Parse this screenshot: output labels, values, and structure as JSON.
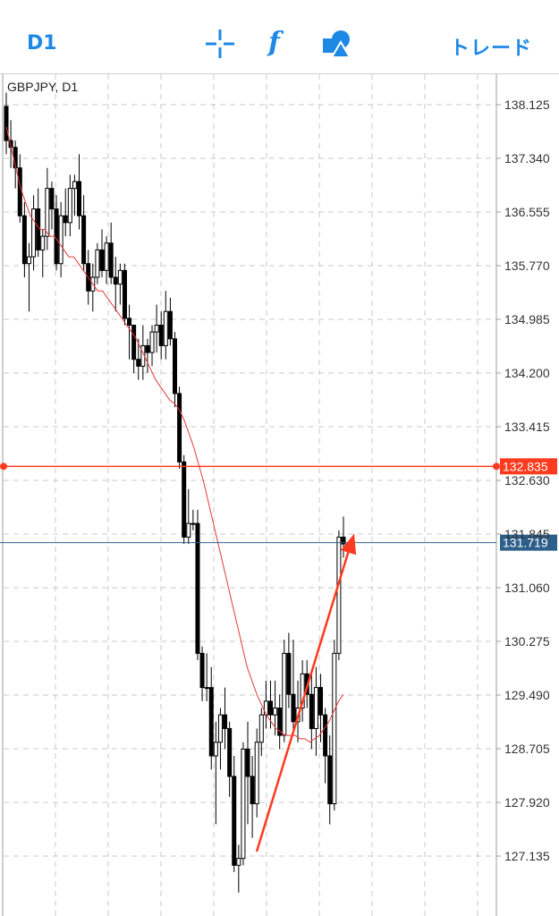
{
  "toolbar": {
    "timeframe": "D1",
    "crosshair_icon": "crosshair-icon",
    "indicators_icon": "function-icon",
    "indicators_glyph": "f",
    "objects_icon": "shapes-icon",
    "trade_label": "トレード"
  },
  "colors": {
    "accent": "#1e88e5",
    "candle": "#000000",
    "ma": "#e53935",
    "hline": "#ff3b1f",
    "bid": "#2e5f8a",
    "grid": "#c8c8c8"
  },
  "chart": {
    "symbol_label": "GBPJPY, D1",
    "y_ticks": [
      "138.125",
      "137.340",
      "136.555",
      "135.770",
      "134.985",
      "134.200",
      "133.415",
      "132.630",
      "131.845",
      "131.060",
      "130.275",
      "129.490",
      "128.705",
      "127.920",
      "127.135"
    ],
    "horizontal_line_price": "132.835",
    "bid_price": "131.719",
    "arrow": {
      "from_price": 127.2,
      "to_price": 131.85
    }
  },
  "chart_data": {
    "type": "candlestick",
    "title": "GBPJPY, D1",
    "ylim": [
      126.5,
      138.5
    ],
    "candles": [
      [
        138.1,
        138.3,
        137.4,
        137.6
      ],
      [
        137.6,
        137.9,
        137.2,
        137.5
      ],
      [
        137.5,
        137.6,
        136.9,
        137.2
      ],
      [
        137.2,
        137.4,
        136.4,
        136.5
      ],
      [
        136.5,
        136.7,
        135.6,
        135.8
      ],
      [
        135.8,
        136.1,
        135.1,
        135.9
      ],
      [
        135.9,
        136.8,
        135.7,
        136.6
      ],
      [
        136.6,
        136.9,
        135.9,
        136.0
      ],
      [
        136.0,
        136.3,
        135.6,
        136.2
      ],
      [
        136.2,
        137.2,
        136.0,
        136.9
      ],
      [
        136.9,
        137.0,
        136.3,
        136.6
      ],
      [
        136.6,
        136.8,
        135.7,
        135.8
      ],
      [
        135.8,
        136.7,
        135.6,
        136.5
      ],
      [
        136.5,
        136.9,
        136.2,
        136.4
      ],
      [
        136.4,
        137.1,
        136.2,
        136.9
      ],
      [
        136.9,
        137.1,
        136.5,
        137.0
      ],
      [
        137.0,
        137.4,
        136.3,
        136.5
      ],
      [
        136.5,
        136.8,
        135.7,
        135.8
      ],
      [
        135.8,
        136.0,
        135.2,
        135.4
      ],
      [
        135.4,
        135.8,
        135.1,
        135.6
      ],
      [
        135.6,
        136.1,
        135.5,
        136.0
      ],
      [
        136.0,
        136.3,
        135.6,
        135.7
      ],
      [
        135.7,
        136.2,
        135.5,
        136.1
      ],
      [
        136.1,
        136.4,
        135.5,
        135.6
      ],
      [
        135.6,
        135.9,
        135.1,
        135.5
      ],
      [
        135.5,
        135.8,
        135.2,
        135.7
      ],
      [
        135.7,
        135.8,
        134.9,
        135.0
      ],
      [
        135.0,
        135.2,
        134.4,
        134.9
      ],
      [
        134.9,
        134.9,
        134.2,
        134.4
      ],
      [
        134.4,
        134.7,
        134.1,
        134.3
      ],
      [
        134.3,
        134.9,
        134.1,
        134.6
      ],
      [
        134.6,
        134.7,
        134.2,
        134.5
      ],
      [
        134.5,
        134.9,
        134.3,
        134.8
      ],
      [
        134.8,
        135.2,
        134.5,
        134.9
      ],
      [
        134.9,
        135.1,
        134.4,
        134.6
      ],
      [
        134.6,
        135.4,
        134.4,
        135.1
      ],
      [
        135.1,
        135.3,
        134.6,
        134.7
      ],
      [
        134.7,
        134.8,
        133.7,
        133.9
      ],
      [
        133.9,
        134.0,
        132.8,
        132.9
      ],
      [
        132.9,
        133.0,
        131.7,
        131.8
      ],
      [
        131.8,
        132.5,
        131.7,
        132.0
      ],
      [
        132.0,
        132.2,
        131.9,
        132.0
      ],
      [
        132.0,
        132.2,
        130.0,
        130.1
      ],
      [
        130.1,
        130.2,
        129.4,
        129.6
      ],
      [
        129.6,
        130.1,
        129.4,
        129.6
      ],
      [
        129.6,
        129.9,
        128.4,
        128.6
      ],
      [
        128.6,
        129.1,
        127.6,
        128.8
      ],
      [
        128.8,
        129.3,
        128.4,
        129.2
      ],
      [
        129.2,
        129.6,
        128.7,
        129.0
      ],
      [
        129.0,
        129.1,
        128.0,
        128.3
      ],
      [
        128.3,
        128.6,
        126.9,
        127.0
      ],
      [
        127.0,
        127.3,
        126.6,
        127.1
      ],
      [
        127.1,
        128.8,
        127.0,
        128.7
      ],
      [
        128.7,
        129.1,
        127.6,
        128.3
      ],
      [
        128.3,
        128.6,
        127.4,
        127.9
      ],
      [
        127.9,
        129.0,
        127.7,
        128.8
      ],
      [
        128.8,
        129.3,
        128.6,
        129.2
      ],
      [
        129.2,
        129.7,
        129.0,
        129.4
      ],
      [
        129.4,
        129.7,
        129.0,
        129.2
      ],
      [
        129.2,
        129.7,
        128.9,
        129.3
      ],
      [
        129.3,
        129.5,
        128.7,
        128.9
      ],
      [
        128.9,
        130.3,
        128.8,
        130.1
      ],
      [
        130.1,
        130.4,
        129.3,
        129.5
      ],
      [
        129.5,
        130.3,
        128.9,
        129.1
      ],
      [
        129.1,
        129.7,
        128.8,
        129.3
      ],
      [
        129.3,
        130.0,
        129.1,
        129.8
      ],
      [
        129.8,
        130.0,
        129.3,
        129.5
      ],
      [
        129.5,
        129.8,
        128.7,
        129.0
      ],
      [
        129.0,
        129.9,
        128.6,
        129.6
      ],
      [
        129.6,
        129.8,
        128.8,
        129.2
      ],
      [
        129.2,
        129.3,
        128.2,
        128.6
      ],
      [
        128.6,
        128.9,
        127.6,
        127.9
      ],
      [
        127.9,
        130.3,
        127.8,
        130.1
      ],
      [
        130.1,
        131.9,
        130.0,
        131.8
      ],
      [
        131.8,
        132.1,
        131.5,
        131.7
      ]
    ],
    "ma": [
      137.8,
      137.5,
      137.2,
      136.9,
      136.7,
      136.5,
      136.4,
      136.3,
      136.3,
      136.2,
      136.2,
      136.1,
      136.0,
      135.9,
      135.9,
      135.8,
      135.7,
      135.6,
      135.5,
      135.4,
      135.4,
      135.3,
      135.2,
      135.1,
      135.0,
      134.9,
      134.8,
      134.7,
      134.55,
      134.4,
      134.25,
      134.1,
      134.0,
      133.9,
      133.8,
      133.75,
      133.65,
      133.5,
      133.3,
      133.1,
      132.85,
      132.6,
      132.3,
      132.0,
      131.7,
      131.4,
      131.1,
      130.8,
      130.5,
      130.2,
      129.9,
      129.7,
      129.5,
      129.35,
      129.2,
      129.1,
      129.0,
      128.95,
      128.9,
      128.9,
      128.9,
      128.85,
      128.85,
      128.8,
      128.85,
      128.9,
      129.0,
      129.1,
      129.25,
      129.4,
      129.5
    ],
    "hline": 132.835,
    "bid": 131.719,
    "arrow": {
      "from_price": 127.2,
      "to_price": 131.85
    }
  }
}
